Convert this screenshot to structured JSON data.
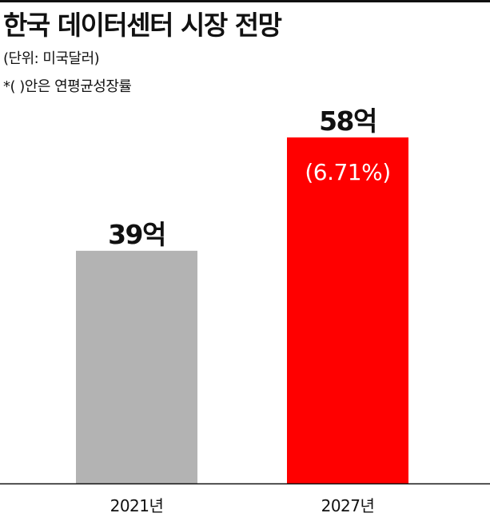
{
  "header": {
    "title": "한국 데이터센터 시장 전망",
    "unit": "(단위: 미국달러)",
    "note": "*( )안은 연평균성장률"
  },
  "colors": {
    "bar_2021": "#b3b3b3",
    "bar_2027": "#ff0000",
    "baseline": "#111111",
    "text": "#111111"
  },
  "chart_data": {
    "type": "bar",
    "title": "한국 데이터센터 시장 전망",
    "xlabel": "",
    "ylabel": "",
    "categories": [
      "2021년",
      "2027년"
    ],
    "values": [
      39,
      58
    ],
    "value_labels": [
      "39억",
      "58억"
    ],
    "annotations": [
      {
        "category": "2027년",
        "text": "(6.71%)"
      }
    ],
    "ylim": [
      0,
      58
    ],
    "grid": false
  }
}
